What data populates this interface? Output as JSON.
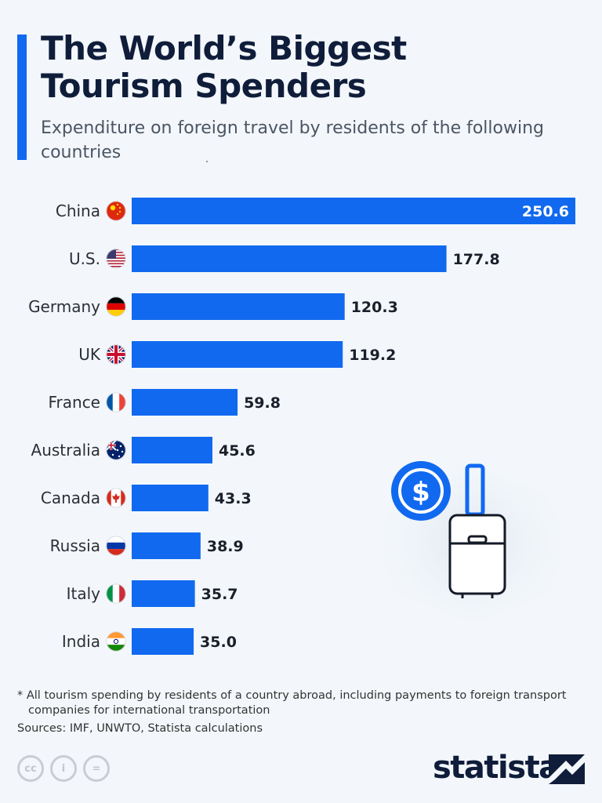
{
  "header": {
    "title_line1": "The World’s Biggest",
    "title_line2": "Tourism Spenders",
    "subtitle": "Expenditure on foreign travel by residents of the following countries"
  },
  "chart_data": {
    "type": "bar",
    "orientation": "horizontal",
    "title": "The World’s Biggest Tourism Spenders",
    "subtitle": "Expenditure on foreign travel by residents of the following countries",
    "categories": [
      "China",
      "U.S.",
      "Germany",
      "UK",
      "France",
      "Australia",
      "Canada",
      "Russia",
      "Italy",
      "India"
    ],
    "values": [
      250.6,
      177.8,
      120.3,
      119.2,
      59.8,
      45.6,
      43.3,
      38.9,
      35.7,
      35.0
    ],
    "value_labels": [
      "250.6",
      "177.8",
      "120.3",
      "119.2",
      "59.8",
      "45.6",
      "43.3",
      "38.9",
      "35.7",
      "35.0"
    ],
    "flags": [
      "flag-china",
      "flag-us",
      "flag-germany",
      "flag-uk",
      "flag-france",
      "flag-australia",
      "flag-canada",
      "flag-russia",
      "flag-italy",
      "flag-india"
    ],
    "xlim": [
      0,
      250.6
    ],
    "xlabel": "",
    "ylabel": "",
    "grid": false,
    "bar_color": "#1169f0"
  },
  "footnote": {
    "line1": "* All tourism spending by residents of a country abroad, including payments to foreign transport",
    "line2": "companies for international transportation"
  },
  "sources": "Sources: IMF, UNWTO, Statista calculations",
  "brand": "statista",
  "license_icons": [
    "cc-icon",
    "attribution-icon",
    "no-derivatives-icon"
  ],
  "license_labels": [
    "cc",
    "i",
    "="
  ],
  "illustration": {
    "dollar_symbol": "$"
  }
}
